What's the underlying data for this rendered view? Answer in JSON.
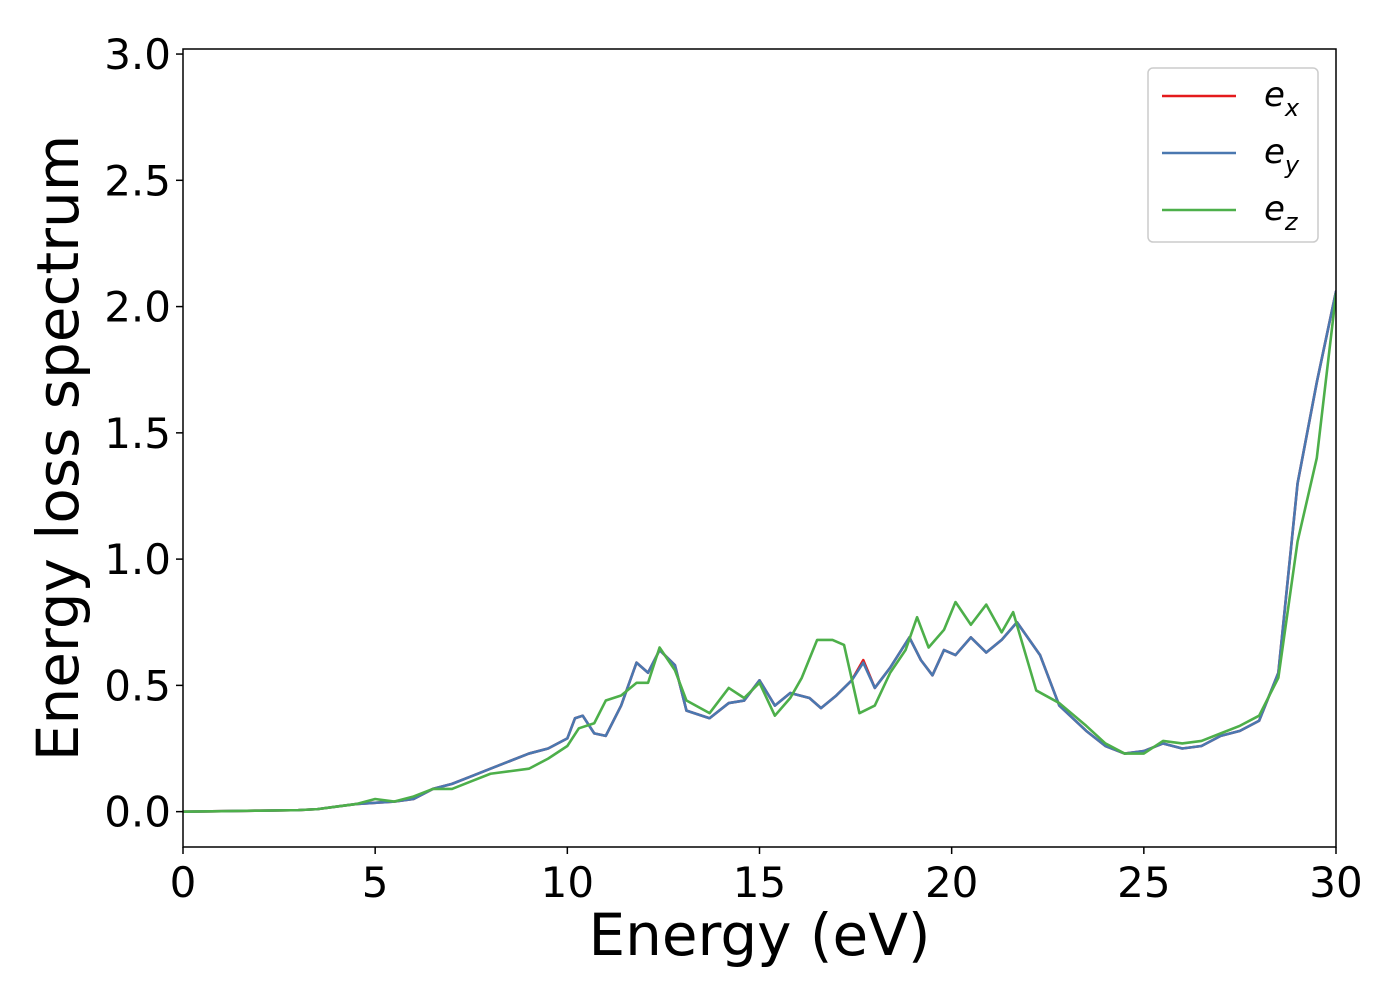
{
  "chart_data": {
    "type": "line",
    "xlabel": "Energy (eV)",
    "ylabel": "Energy loss spectrum",
    "xlim": [
      0,
      30
    ],
    "ylim": [
      -0.14,
      3.02
    ],
    "xticks": [
      0,
      5,
      10,
      15,
      20,
      25,
      30
    ],
    "xtick_labels": [
      "0",
      "5",
      "10",
      "15",
      "20",
      "25",
      "30"
    ],
    "yticks": [
      0.0,
      0.5,
      1.0,
      1.5,
      2.0,
      2.5,
      3.0
    ],
    "ytick_labels": [
      "0.0",
      "0.5",
      "1.0",
      "1.5",
      "2.0",
      "2.5",
      "3.0"
    ],
    "grid": false,
    "legend_position": "top-right",
    "series": [
      {
        "name": "e_x",
        "legend_base": "e",
        "legend_sub": "x",
        "color": "#e41a1c",
        "x": [
          0,
          1,
          2,
          3,
          3.5,
          4,
          4.5,
          5,
          5.5,
          6,
          6.5,
          7,
          7.5,
          8,
          8.5,
          9,
          9.5,
          10,
          10.2,
          10.4,
          10.7,
          11,
          11.4,
          11.8,
          12.1,
          12.4,
          12.8,
          13.1,
          13.7,
          14.2,
          14.6,
          15,
          15.4,
          15.8,
          16.3,
          16.6,
          17,
          17.4,
          17.7,
          18,
          18.4,
          18.9,
          19.2,
          19.5,
          19.8,
          20.1,
          20.5,
          20.9,
          21.3,
          21.7,
          22.3,
          22.8,
          23.5,
          24,
          24.5,
          25,
          25.5,
          26,
          26.5,
          27,
          27.5,
          28,
          28.5,
          29,
          29.5,
          30
        ],
        "y": [
          0,
          0.002,
          0.004,
          0.006,
          0.01,
          0.02,
          0.03,
          0.035,
          0.04,
          0.05,
          0.09,
          0.11,
          0.14,
          0.17,
          0.2,
          0.23,
          0.25,
          0.29,
          0.37,
          0.38,
          0.31,
          0.3,
          0.42,
          0.59,
          0.55,
          0.64,
          0.58,
          0.4,
          0.37,
          0.43,
          0.44,
          0.52,
          0.42,
          0.47,
          0.45,
          0.41,
          0.46,
          0.52,
          0.6,
          0.49,
          0.57,
          0.69,
          0.6,
          0.54,
          0.64,
          0.62,
          0.69,
          0.63,
          0.68,
          0.75,
          0.62,
          0.42,
          0.32,
          0.26,
          0.23,
          0.24,
          0.27,
          0.25,
          0.26,
          0.3,
          0.32,
          0.36,
          0.55,
          1.3,
          1.7,
          2.06
        ]
      },
      {
        "name": "e_y",
        "legend_base": "e",
        "legend_sub": "y",
        "color": "#4a78b0",
        "x": [
          0,
          1,
          2,
          3,
          3.5,
          4,
          4.5,
          5,
          5.5,
          6,
          6.5,
          7,
          7.5,
          8,
          8.5,
          9,
          9.5,
          10,
          10.2,
          10.4,
          10.7,
          11,
          11.4,
          11.8,
          12.1,
          12.4,
          12.8,
          13.1,
          13.7,
          14.2,
          14.6,
          15,
          15.4,
          15.8,
          16.3,
          16.6,
          17,
          17.4,
          17.7,
          18,
          18.4,
          18.9,
          19.2,
          19.5,
          19.8,
          20.1,
          20.5,
          20.9,
          21.3,
          21.7,
          22.3,
          22.8,
          23.5,
          24,
          24.5,
          25,
          25.5,
          26,
          26.5,
          27,
          27.5,
          28,
          28.5,
          29,
          29.5,
          30
        ],
        "y": [
          0,
          0.002,
          0.004,
          0.006,
          0.01,
          0.02,
          0.03,
          0.035,
          0.04,
          0.05,
          0.09,
          0.11,
          0.14,
          0.17,
          0.2,
          0.23,
          0.25,
          0.29,
          0.37,
          0.38,
          0.31,
          0.3,
          0.42,
          0.59,
          0.55,
          0.64,
          0.58,
          0.4,
          0.37,
          0.43,
          0.44,
          0.52,
          0.42,
          0.47,
          0.45,
          0.41,
          0.46,
          0.52,
          0.59,
          0.49,
          0.57,
          0.69,
          0.6,
          0.54,
          0.64,
          0.62,
          0.69,
          0.63,
          0.68,
          0.75,
          0.62,
          0.42,
          0.32,
          0.26,
          0.23,
          0.24,
          0.27,
          0.25,
          0.26,
          0.3,
          0.32,
          0.36,
          0.55,
          1.3,
          1.7,
          2.06
        ]
      },
      {
        "name": "e_z",
        "legend_base": "e",
        "legend_sub": "z",
        "color": "#4daf4a",
        "x": [
          0,
          1,
          2,
          3,
          3.5,
          4,
          4.5,
          5,
          5.5,
          6,
          6.5,
          7,
          7.5,
          8,
          8.5,
          9,
          9.5,
          10,
          10.3,
          10.7,
          11,
          11.4,
          11.8,
          12.1,
          12.4,
          12.8,
          13.1,
          13.7,
          14.2,
          14.6,
          15,
          15.4,
          15.8,
          16.1,
          16.5,
          16.9,
          17.2,
          17.6,
          18,
          18.4,
          18.8,
          19.1,
          19.4,
          19.8,
          20.1,
          20.5,
          20.9,
          21.3,
          21.6,
          22.2,
          22.8,
          23.5,
          24,
          24.5,
          25,
          25.5,
          26,
          26.5,
          27,
          27.5,
          28,
          28.5,
          29,
          29.5,
          30
        ],
        "y": [
          0,
          0.002,
          0.004,
          0.006,
          0.01,
          0.02,
          0.03,
          0.05,
          0.04,
          0.06,
          0.09,
          0.09,
          0.12,
          0.15,
          0.16,
          0.17,
          0.21,
          0.26,
          0.33,
          0.35,
          0.44,
          0.46,
          0.51,
          0.51,
          0.65,
          0.56,
          0.44,
          0.39,
          0.49,
          0.45,
          0.51,
          0.38,
          0.45,
          0.53,
          0.68,
          0.68,
          0.66,
          0.39,
          0.42,
          0.55,
          0.64,
          0.77,
          0.65,
          0.72,
          0.83,
          0.74,
          0.82,
          0.71,
          0.79,
          0.48,
          0.43,
          0.34,
          0.27,
          0.23,
          0.23,
          0.28,
          0.27,
          0.28,
          0.31,
          0.34,
          0.38,
          0.53,
          1.07,
          1.4,
          2.05
        ]
      }
    ]
  }
}
